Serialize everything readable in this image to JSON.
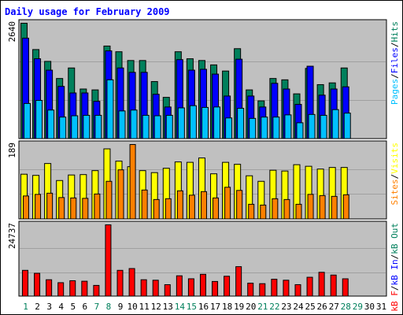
{
  "title": "Daily usage for February 2009",
  "colors": {
    "background": "#ffffff",
    "border": "#000000",
    "panel": "#c0c0c0",
    "gridline": "#a0a0a0",
    "title_text": "#0000ff",
    "hits": "#00805c",
    "files": "#0000ff",
    "pages": "#00c0ff",
    "visits": "#ffff00",
    "sites": "#ff8000",
    "kbin": "#0000ff",
    "kbout": "#00805c",
    "kbf": "#ff0000",
    "day_weekday": "#000000",
    "day_weekend": "#00805c",
    "bar_outline": "#000000"
  },
  "chart_data": [
    {
      "type": "bar",
      "panel": "hits-files-pages",
      "ymax_label": "2640",
      "ylim": [
        0,
        2640
      ],
      "legend": [
        {
          "label": "Pages",
          "color": "#00c0ff"
        },
        {
          "label": "/",
          "color": "#000000"
        },
        {
          "label": "Files",
          "color": "#0000ff"
        },
        {
          "label": "/",
          "color": "#000000"
        },
        {
          "label": "Hits",
          "color": "#00805c"
        }
      ],
      "categories": [
        "1",
        "2",
        "3",
        "4",
        "5",
        "6",
        "7",
        "8",
        "9",
        "10",
        "11",
        "12",
        "13",
        "14",
        "15",
        "16",
        "17",
        "18",
        "19",
        "20",
        "21",
        "22",
        "23",
        "24",
        "25",
        "26",
        "27",
        "28"
      ],
      "series": [
        {
          "name": "Hits",
          "values": [
            2640,
            2040,
            1770,
            1380,
            1620,
            1140,
            1120,
            2120,
            1990,
            1790,
            1790,
            1310,
            950,
            1990,
            1830,
            1790,
            1690,
            1550,
            2060,
            1120,
            870,
            1380,
            1350,
            1030,
            1610,
            1240,
            1280,
            1620
          ]
        },
        {
          "name": "Files",
          "values": [
            2300,
            1830,
            1570,
            1200,
            1050,
            1050,
            860,
            2010,
            1620,
            1520,
            1520,
            1020,
            730,
            1810,
            1570,
            1590,
            1480,
            980,
            1820,
            980,
            730,
            1270,
            1140,
            790,
            1660,
            1000,
            1140,
            1190
          ]
        },
        {
          "name": "Pages",
          "values": [
            810,
            880,
            660,
            500,
            530,
            540,
            540,
            1350,
            640,
            660,
            540,
            530,
            540,
            710,
            760,
            720,
            730,
            480,
            700,
            470,
            500,
            500,
            550,
            370,
            560,
            540,
            670,
            590
          ]
        }
      ]
    },
    {
      "type": "bar",
      "panel": "visits-sites",
      "ymax_label": "189",
      "ylim": [
        0,
        189
      ],
      "legend": [
        {
          "label": "Sites",
          "color": "#ff8000"
        },
        {
          "label": "/",
          "color": "#000000"
        },
        {
          "label": "Visits",
          "color": "#ffff00"
        }
      ],
      "categories": [
        "1",
        "2",
        "3",
        "4",
        "5",
        "6",
        "7",
        "8",
        "9",
        "10",
        "11",
        "12",
        "13",
        "14",
        "15",
        "16",
        "17",
        "18",
        "19",
        "20",
        "21",
        "22",
        "23",
        "24",
        "25",
        "26",
        "27",
        "28"
      ],
      "series": [
        {
          "name": "Visits",
          "values": [
            114,
            111,
            141,
            98,
            112,
            113,
            123,
            178,
            147,
            133,
            123,
            118,
            129,
            145,
            144,
            155,
            115,
            144,
            139,
            110,
            96,
            124,
            122,
            138,
            134,
            127,
            131,
            131
          ]
        },
        {
          "name": "Sites",
          "values": [
            59,
            63,
            66,
            55,
            54,
            53,
            64,
            96,
            125,
            189,
            74,
            50,
            52,
            72,
            61,
            70,
            54,
            81,
            73,
            38,
            36,
            52,
            50,
            38,
            63,
            60,
            58,
            62
          ]
        }
      ]
    },
    {
      "type": "bar",
      "panel": "kbytes",
      "ymax_label": "24737",
      "ylim": [
        0,
        24737
      ],
      "legend": [
        {
          "label": "kB F",
          "color": "#ff0000"
        },
        {
          "label": "/",
          "color": "#000000"
        },
        {
          "label": "kB In",
          "color": "#0000ff"
        },
        {
          "label": "/",
          "color": "#000000"
        },
        {
          "label": "kB Out",
          "color": "#00805c"
        }
      ],
      "categories": [
        "1",
        "2",
        "3",
        "4",
        "5",
        "6",
        "7",
        "8",
        "9",
        "10",
        "11",
        "12",
        "13",
        "14",
        "15",
        "16",
        "17",
        "18",
        "19",
        "20",
        "21",
        "22",
        "23",
        "24",
        "25",
        "26",
        "27",
        "28"
      ],
      "series": [
        {
          "name": "kB F",
          "values": [
            9030,
            8010,
            5790,
            4770,
            5440,
            5270,
            3830,
            24737,
            9030,
            9650,
            5790,
            5620,
            4080,
            7150,
            6120,
            7660,
            5190,
            6990,
            10300,
            4600,
            4430,
            5960,
            5620,
            4090,
            6640,
            8350,
            7400,
            6110
          ]
        }
      ]
    }
  ],
  "days": [
    {
      "label": "1",
      "weekend": true
    },
    {
      "label": "2",
      "weekend": false
    },
    {
      "label": "3",
      "weekend": false
    },
    {
      "label": "4",
      "weekend": false
    },
    {
      "label": "5",
      "weekend": false
    },
    {
      "label": "6",
      "weekend": false
    },
    {
      "label": "7",
      "weekend": true
    },
    {
      "label": "8",
      "weekend": true
    },
    {
      "label": "9",
      "weekend": false
    },
    {
      "label": "10",
      "weekend": false
    },
    {
      "label": "11",
      "weekend": false
    },
    {
      "label": "12",
      "weekend": false
    },
    {
      "label": "13",
      "weekend": false
    },
    {
      "label": "14",
      "weekend": true
    },
    {
      "label": "15",
      "weekend": true
    },
    {
      "label": "16",
      "weekend": false
    },
    {
      "label": "17",
      "weekend": false
    },
    {
      "label": "18",
      "weekend": false
    },
    {
      "label": "19",
      "weekend": false
    },
    {
      "label": "20",
      "weekend": false
    },
    {
      "label": "21",
      "weekend": true
    },
    {
      "label": "22",
      "weekend": true
    },
    {
      "label": "23",
      "weekend": false
    },
    {
      "label": "24",
      "weekend": false
    },
    {
      "label": "25",
      "weekend": false
    },
    {
      "label": "26",
      "weekend": false
    },
    {
      "label": "27",
      "weekend": false
    },
    {
      "label": "28",
      "weekend": true
    },
    {
      "label": "29",
      "weekend": true
    },
    {
      "label": "30",
      "weekend": false
    },
    {
      "label": "31",
      "weekend": false
    }
  ]
}
